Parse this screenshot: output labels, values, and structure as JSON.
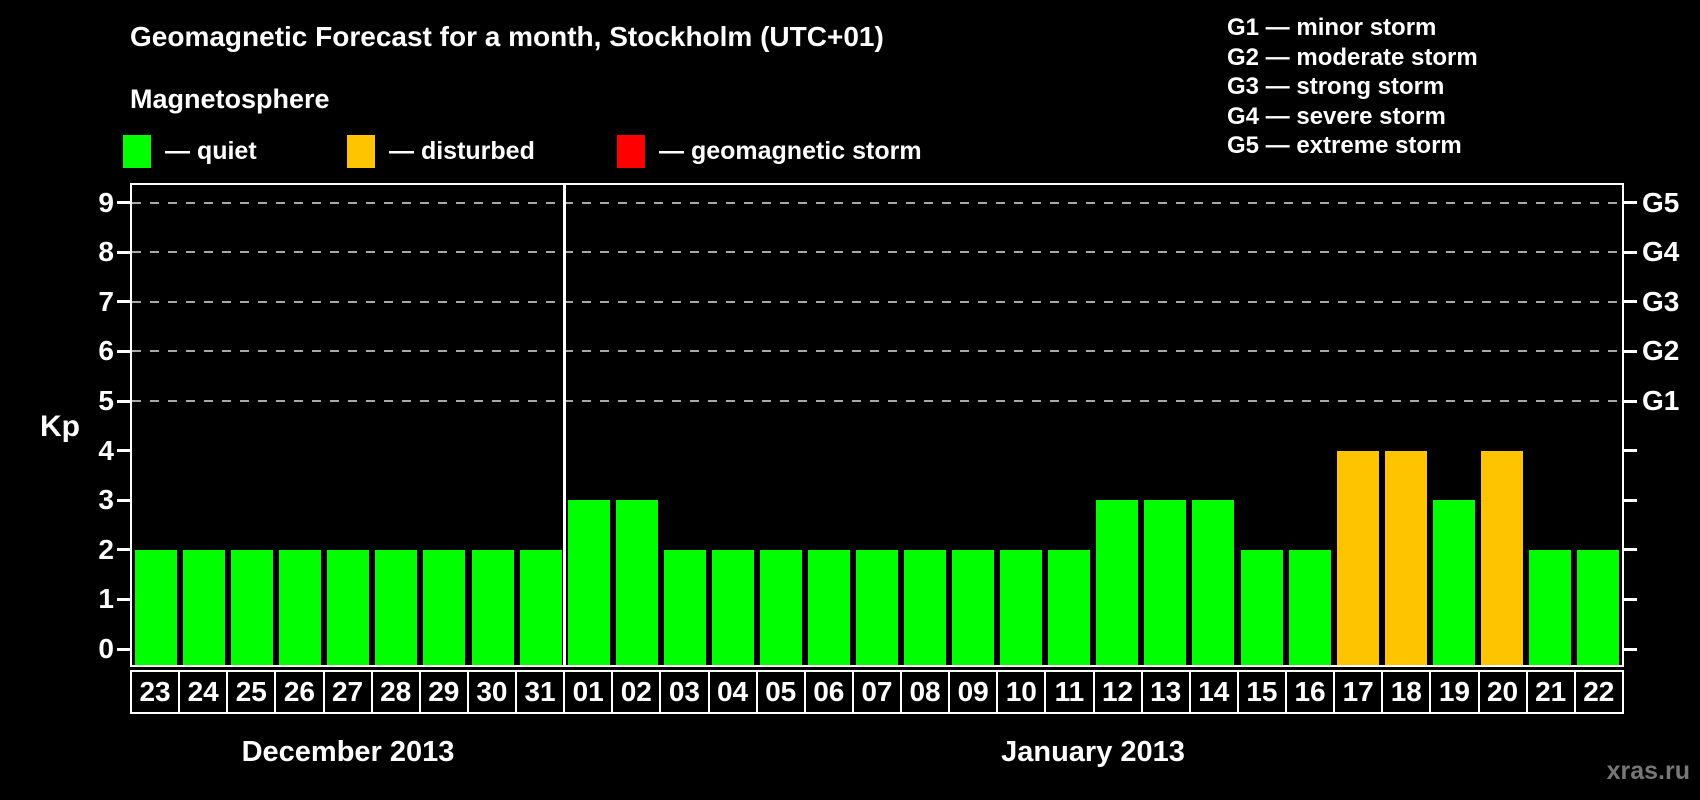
{
  "title": "Geomagnetic Forecast for a month, Stockholm (UTC+01)",
  "subtitle": "Magnetosphere",
  "legend": {
    "items": [
      {
        "key": "quiet",
        "label": "— quiet",
        "color": "#00FF00"
      },
      {
        "key": "disturbed",
        "label": "— disturbed",
        "color": "#FFC400"
      },
      {
        "key": "storm",
        "label": "— geomagnetic storm",
        "color": "#FF0000"
      }
    ]
  },
  "storm_scale_legend": [
    "G1 — minor storm",
    "G2 — moderate storm",
    "G3 — strong storm",
    "G4 — severe storm",
    "G5 — extreme storm"
  ],
  "watermark": "xras.ru",
  "chart_data": {
    "type": "bar",
    "ylabel": "Kp",
    "yticks": [
      0,
      1,
      2,
      3,
      4,
      5,
      6,
      7,
      8,
      9
    ],
    "ylim": [
      -0.4,
      9.4
    ],
    "grid": "dashed horizontal at storm levels",
    "grid_levels": [
      5,
      6,
      7,
      8,
      9
    ],
    "right_axis_labels": [
      {
        "level": 5,
        "label": "G1"
      },
      {
        "level": 6,
        "label": "G2"
      },
      {
        "level": 7,
        "label": "G3"
      },
      {
        "level": 8,
        "label": "G4"
      },
      {
        "level": 9,
        "label": "G5"
      }
    ],
    "colors": {
      "quiet": "#00FF00",
      "disturbed": "#FFC400",
      "storm": "#FF0000"
    },
    "groups": [
      {
        "label": "December 2013",
        "days": [
          {
            "day": "23",
            "kp": 2,
            "status": "quiet"
          },
          {
            "day": "24",
            "kp": 2,
            "status": "quiet"
          },
          {
            "day": "25",
            "kp": 2,
            "status": "quiet"
          },
          {
            "day": "26",
            "kp": 2,
            "status": "quiet"
          },
          {
            "day": "27",
            "kp": 2,
            "status": "quiet"
          },
          {
            "day": "28",
            "kp": 2,
            "status": "quiet"
          },
          {
            "day": "29",
            "kp": 2,
            "status": "quiet"
          },
          {
            "day": "30",
            "kp": 2,
            "status": "quiet"
          },
          {
            "day": "31",
            "kp": 2,
            "status": "quiet"
          }
        ]
      },
      {
        "label": "January 2013",
        "days": [
          {
            "day": "01",
            "kp": 3,
            "status": "quiet"
          },
          {
            "day": "02",
            "kp": 3,
            "status": "quiet"
          },
          {
            "day": "03",
            "kp": 2,
            "status": "quiet"
          },
          {
            "day": "04",
            "kp": 2,
            "status": "quiet"
          },
          {
            "day": "05",
            "kp": 2,
            "status": "quiet"
          },
          {
            "day": "06",
            "kp": 2,
            "status": "quiet"
          },
          {
            "day": "07",
            "kp": 2,
            "status": "quiet"
          },
          {
            "day": "08",
            "kp": 2,
            "status": "quiet"
          },
          {
            "day": "09",
            "kp": 2,
            "status": "quiet"
          },
          {
            "day": "10",
            "kp": 2,
            "status": "quiet"
          },
          {
            "day": "11",
            "kp": 2,
            "status": "quiet"
          },
          {
            "day": "12",
            "kp": 3,
            "status": "quiet"
          },
          {
            "day": "13",
            "kp": 3,
            "status": "quiet"
          },
          {
            "day": "14",
            "kp": 3,
            "status": "quiet"
          },
          {
            "day": "15",
            "kp": 2,
            "status": "quiet"
          },
          {
            "day": "16",
            "kp": 2,
            "status": "quiet"
          },
          {
            "day": "17",
            "kp": 4,
            "status": "disturbed"
          },
          {
            "day": "18",
            "kp": 4,
            "status": "disturbed"
          },
          {
            "day": "19",
            "kp": 3,
            "status": "quiet"
          },
          {
            "day": "20",
            "kp": 4,
            "status": "disturbed"
          },
          {
            "day": "21",
            "kp": 2,
            "status": "quiet"
          },
          {
            "day": "22",
            "kp": 2,
            "status": "quiet"
          }
        ]
      }
    ]
  }
}
